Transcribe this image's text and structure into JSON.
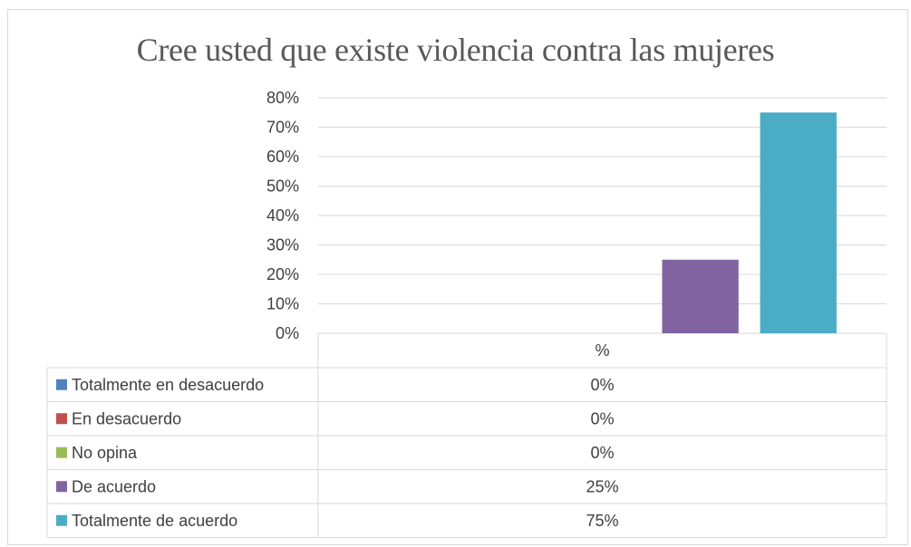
{
  "chart_data": {
    "type": "bar",
    "title": "Cree usted que existe violencia contra las mujeres",
    "categories": [
      "%"
    ],
    "series": [
      {
        "name": "Totalmente en desacuerdo",
        "values": [
          0
        ],
        "display": "0%",
        "color": "#4f81bd"
      },
      {
        "name": "En desacuerdo",
        "values": [
          0
        ],
        "display": "0%",
        "color": "#c0504d"
      },
      {
        "name": "No opina",
        "values": [
          0
        ],
        "display": "0%",
        "color": "#9bbb59"
      },
      {
        "name": "De acuerdo",
        "values": [
          25
        ],
        "display": "25%",
        "color": "#8064a2"
      },
      {
        "name": "Totalmente de acuerdo",
        "values": [
          75
        ],
        "display": "75%",
        "color": "#4bacc6"
      }
    ],
    "ylim": [
      0,
      80
    ],
    "yticks": [
      "0%",
      "10%",
      "20%",
      "30%",
      "40%",
      "50%",
      "60%",
      "70%",
      "80%"
    ],
    "grid": true,
    "legend": "data-table"
  }
}
